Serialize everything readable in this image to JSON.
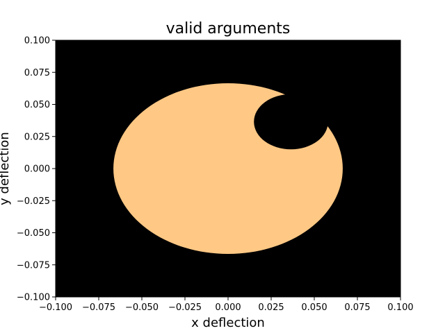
{
  "chart_data": {
    "type": "heatmap",
    "title": "valid arguments",
    "xlabel": "x deflection",
    "ylabel": "y deflection",
    "xlim": [
      -0.1,
      0.1
    ],
    "ylim": [
      -0.1,
      0.1
    ],
    "xticks": [
      -0.1,
      -0.075,
      -0.05,
      -0.025,
      0.0,
      0.025,
      0.05,
      0.075,
      0.1
    ],
    "yticks": [
      -0.1,
      -0.075,
      -0.05,
      -0.025,
      0.0,
      0.025,
      0.05,
      0.075,
      0.1
    ],
    "xtick_labels": [
      "−0.100",
      "−0.075",
      "−0.050",
      "−0.025",
      "0.000",
      "0.025",
      "0.050",
      "0.075",
      "0.100"
    ],
    "ytick_labels": [
      "−0.100",
      "−0.075",
      "−0.050",
      "−0.025",
      "0.000",
      "0.025",
      "0.050",
      "0.075",
      "0.100"
    ],
    "grid": false,
    "colors": {
      "valid": "#ffc884",
      "invalid": "#000000"
    },
    "valid_region": {
      "outer_ellipse": {
        "center": [
          0.0,
          0.0
        ],
        "semi_axes": [
          0.0665,
          0.0665
        ]
      },
      "excluded_circle": {
        "center": [
          0.0365,
          0.0365
        ],
        "radius": 0.0215
      }
    }
  }
}
